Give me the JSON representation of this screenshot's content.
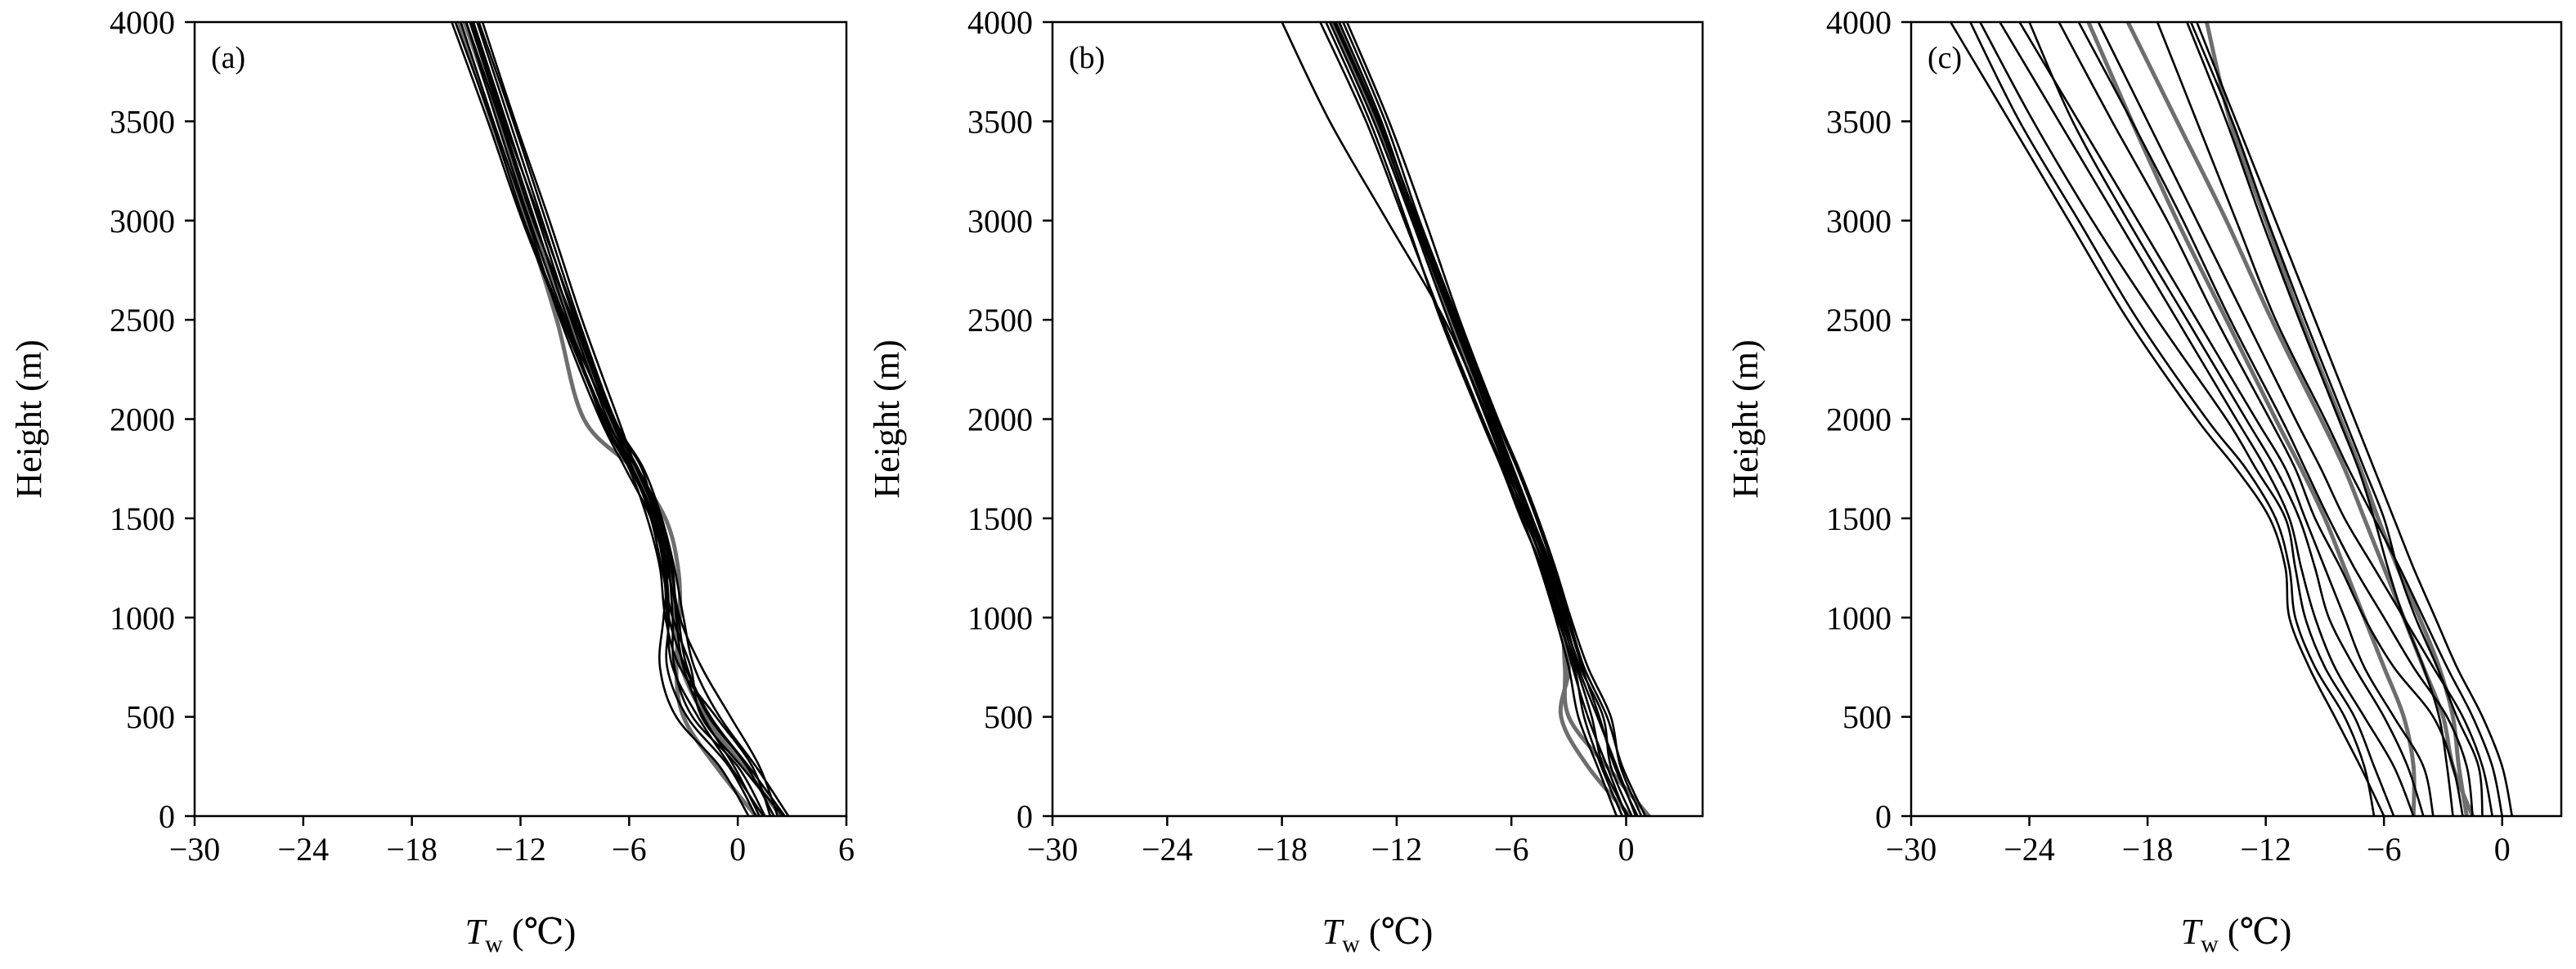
{
  "colors": {
    "profile_dark": "#000000",
    "profile_grey": "#6e6e6e",
    "axis": "#000000",
    "background": "#ffffff"
  },
  "axis_text": {
    "ylabel": "Height (m)",
    "xlabel_symbol": "T",
    "xlabel_subscript": "w",
    "xlabel_unit": " (℃)"
  },
  "chart_data": [
    {
      "type": "line",
      "panel_label": "(a)",
      "xlabel": "Tw (℃)",
      "ylabel": "Height (m)",
      "xlim": [
        -30,
        6
      ],
      "ylim": [
        0,
        4000
      ],
      "xticks": [
        -30,
        -24,
        -18,
        -12,
        -6,
        0,
        6
      ],
      "xtick_labels": [
        "−30",
        "−24",
        "−18",
        "−12",
        "−6",
        "0",
        "6"
      ],
      "yticks": [
        0,
        500,
        1000,
        1500,
        2000,
        2500,
        3000,
        3500,
        4000
      ],
      "ytick_labels": [
        "0",
        "500",
        "1000",
        "1500",
        "2000",
        "2500",
        "3000",
        "3500",
        "4000"
      ],
      "grid": false,
      "heights": [
        0,
        250,
        500,
        750,
        1000,
        1250,
        1500,
        1750,
        2000,
        2500,
        3000,
        3500,
        4000
      ],
      "series": [
        {
          "style": "dark",
          "values": [
            1.5,
            0,
            -2.5,
            -3.5,
            -3.6,
            -3.8,
            -4.2,
            -5.5,
            -7,
            -9.5,
            -11.5,
            -13.3,
            -15
          ]
        },
        {
          "style": "dark",
          "values": [
            2.0,
            0.5,
            -1.6,
            -2.9,
            -3.8,
            -4.0,
            -4.6,
            -5.8,
            -7.2,
            -9.2,
            -11.0,
            -12.8,
            -14.6
          ]
        },
        {
          "style": "dark",
          "values": [
            2.8,
            1.0,
            -1.0,
            -2.4,
            -3.0,
            -3.5,
            -4.2,
            -5.2,
            -6.8,
            -8.8,
            -10.6,
            -12.4,
            -14.3
          ]
        },
        {
          "style": "dark",
          "values": [
            1.0,
            -0.5,
            -2.8,
            -3.9,
            -3.8,
            -4.0,
            -4.8,
            -6.2,
            -7.6,
            -9.8,
            -11.6,
            -13.5,
            -15.3
          ]
        },
        {
          "style": "dark",
          "values": [
            2.5,
            0.2,
            -2.0,
            -2.6,
            -3.6,
            -4.2,
            -4.8,
            -5.8,
            -7.0,
            -9.0,
            -10.8,
            -12.6,
            -14.4
          ]
        },
        {
          "style": "dark",
          "values": [
            0.6,
            -1.0,
            -3.4,
            -4.3,
            -4.1,
            -3.9,
            -4.5,
            -5.6,
            -7.3,
            -9.6,
            -11.8,
            -13.6,
            -15.6
          ]
        },
        {
          "style": "dark",
          "values": [
            2.2,
            1.2,
            -0.4,
            -2.0,
            -3.2,
            -3.7,
            -4.4,
            -5.6,
            -6.6,
            -8.6,
            -10.4,
            -12.3,
            -14.1
          ]
        },
        {
          "style": "dark",
          "values": [
            1.8,
            0.8,
            -1.2,
            -3.2,
            -4.0,
            -4.3,
            -5.0,
            -6.0,
            -7.5,
            -9.4,
            -11.2,
            -13.0,
            -14.8
          ]
        },
        {
          "style": "dark",
          "values": [
            1.2,
            -0.2,
            -1.9,
            -3.0,
            -3.4,
            -3.6,
            -4.3,
            -5.5,
            -7.0,
            -9.1,
            -11.3,
            -13.1,
            -15.0
          ]
        },
        {
          "style": "dark",
          "values": [
            2.6,
            0.6,
            -1.5,
            -2.8,
            -3.3,
            -3.9,
            -4.7,
            -5.9,
            -7.4,
            -9.7,
            -11.9,
            -13.8,
            -15.8
          ]
        },
        {
          "style": "dark",
          "values": [
            1.4,
            -0.4,
            -2.2,
            -3.6,
            -3.9,
            -4.1,
            -4.6,
            -5.3,
            -6.9,
            -8.9,
            -10.9,
            -12.9,
            -14.7
          ]
        },
        {
          "style": "grey",
          "values": [
            1.0,
            -1.2,
            -3.0,
            -3.4,
            -3.2,
            -3.3,
            -4.0,
            -5.8,
            -8.5,
            -10.0,
            -11.7,
            -13.6,
            -15.4
          ]
        },
        {
          "style": "grey",
          "values": [
            2.4,
            0.3,
            -1.8,
            -3.1,
            -3.5,
            -3.7,
            -4.4,
            -5.7,
            -7.1,
            -9.3,
            -11.4,
            -13.2,
            -15.1
          ]
        }
      ]
    },
    {
      "type": "line",
      "panel_label": "(b)",
      "xlabel": "Tw (℃)",
      "ylabel": "Height (m)",
      "xlim": [
        -30,
        4
      ],
      "ylim": [
        0,
        4000
      ],
      "xticks": [
        -30,
        -24,
        -18,
        -12,
        -6,
        0
      ],
      "xtick_labels": [
        "−30",
        "−24",
        "−18",
        "−12",
        "−6",
        "0"
      ],
      "yticks": [
        0,
        500,
        1000,
        1500,
        2000,
        2500,
        3000,
        3500,
        4000
      ],
      "ytick_labels": [
        "0",
        "500",
        "1000",
        "1500",
        "2000",
        "2500",
        "3000",
        "3500",
        "4000"
      ],
      "grid": false,
      "heights": [
        0,
        250,
        500,
        750,
        1000,
        1250,
        1500,
        1750,
        2000,
        2500,
        3000,
        3500,
        4000
      ],
      "series": [
        {
          "style": "dark",
          "values": [
            0.5,
            -0.5,
            -1.5,
            -2.5,
            -3.2,
            -4.0,
            -5.0,
            -6.0,
            -7.0,
            -9.0,
            -11.0,
            -12.8,
            -15.0
          ]
        },
        {
          "style": "dark",
          "values": [
            1.0,
            -0.2,
            -1.0,
            -2.2,
            -3.0,
            -3.8,
            -4.7,
            -5.7,
            -6.8,
            -8.8,
            -10.8,
            -12.6,
            -14.8
          ]
        },
        {
          "style": "dark",
          "values": [
            0.0,
            -1.0,
            -2.0,
            -2.8,
            -3.5,
            -4.3,
            -5.2,
            -6.3,
            -7.3,
            -9.3,
            -11.2,
            -13.2,
            -15.5
          ]
        },
        {
          "style": "dark",
          "values": [
            -0.5,
            -1.5,
            -2.5,
            -3.0,
            -3.7,
            -4.5,
            -5.4,
            -6.4,
            -7.5,
            -9.6,
            -11.6,
            -13.6,
            -16.0
          ]
        },
        {
          "style": "dark",
          "values": [
            0.3,
            -0.8,
            -1.2,
            -2.4,
            -3.3,
            -4.1,
            -5.1,
            -6.1,
            -7.1,
            -9.1,
            -11.1,
            -13.0,
            -15.3
          ]
        },
        {
          "style": "dark",
          "values": [
            0.8,
            -0.3,
            -0.8,
            -2.0,
            -2.9,
            -3.7,
            -4.6,
            -5.6,
            -6.7,
            -8.7,
            -10.5,
            -12.4,
            -14.6
          ]
        },
        {
          "style": "dark",
          "values": [
            0.1,
            -1.2,
            -1.8,
            -2.6,
            -3.4,
            -4.2,
            -5.3,
            -6.2,
            -7.2,
            -9.5,
            -12.5,
            -15.5,
            -18.0
          ]
        },
        {
          "style": "dark",
          "values": [
            0.6,
            -0.6,
            -1.4,
            -2.3,
            -3.1,
            -3.9,
            -4.9,
            -5.9,
            -6.9,
            -8.9,
            -10.9,
            -12.9,
            -15.2
          ]
        },
        {
          "style": "dark",
          "values": [
            -0.2,
            -1.3,
            -2.2,
            -2.7,
            -3.6,
            -4.4,
            -5.5,
            -6.5,
            -7.6,
            -9.7,
            -11.5,
            -13.4,
            -15.7
          ]
        },
        {
          "style": "grey",
          "values": [
            1.2,
            -1.0,
            -3.0,
            -3.2,
            -3.4,
            -4.2,
            -5.0,
            -6.0,
            -7.1,
            -9.1,
            -11.0,
            -12.9,
            -15.1
          ]
        },
        {
          "style": "grey",
          "values": [
            0.2,
            -2.0,
            -3.4,
            -3.0,
            -3.5,
            -4.3,
            -5.2,
            -6.2,
            -7.2,
            -9.2,
            -11.1,
            -13.1,
            -15.4
          ]
        }
      ]
    },
    {
      "type": "line",
      "panel_label": "(c)",
      "xlabel": "Tw (℃)",
      "ylabel": "Height (m)",
      "xlim": [
        -30,
        3
      ],
      "ylim": [
        0,
        4000
      ],
      "xticks": [
        -30,
        -24,
        -18,
        -12,
        -6,
        0
      ],
      "xtick_labels": [
        "−30",
        "−24",
        "−18",
        "−12",
        "−6",
        "0"
      ],
      "yticks": [
        0,
        500,
        1000,
        1500,
        2000,
        2500,
        3000,
        3500,
        4000
      ],
      "ytick_labels": [
        "0",
        "500",
        "1000",
        "1500",
        "2000",
        "2500",
        "3000",
        "3500",
        "4000"
      ],
      "grid": false,
      "heights": [
        0,
        250,
        500,
        750,
        1000,
        1250,
        1500,
        1750,
        2000,
        2500,
        3000,
        3500,
        4000
      ],
      "series": [
        {
          "style": "dark",
          "values": [
            -6.5,
            -7.0,
            -8.0,
            -9.5,
            -10.5,
            -10.8,
            -11.5,
            -13.0,
            -15.0,
            -18.5,
            -21.5,
            -24.5,
            -27.0
          ]
        },
        {
          "style": "dark",
          "values": [
            -5.5,
            -6.5,
            -7.5,
            -9.0,
            -10.0,
            -10.5,
            -11.0,
            -12.5,
            -14.0,
            -17.5,
            -20.8,
            -23.8,
            -26.5
          ]
        },
        {
          "style": "dark",
          "values": [
            -4.5,
            -5.5,
            -7.0,
            -8.5,
            -9.5,
            -10.2,
            -10.8,
            -12.0,
            -13.5,
            -16.5,
            -19.5,
            -22.5,
            -25.5
          ]
        },
        {
          "style": "dark",
          "values": [
            -3.5,
            -4.0,
            -5.5,
            -7.0,
            -8.0,
            -9.0,
            -10.0,
            -11.0,
            -12.5,
            -15.5,
            -18.5,
            -21.5,
            -24.5
          ]
        },
        {
          "style": "dark",
          "values": [
            -2.0,
            -2.5,
            -3.5,
            -5.5,
            -7.0,
            -8.2,
            -9.5,
            -10.5,
            -11.8,
            -14.5,
            -17.0,
            -19.8,
            -22.5
          ]
        },
        {
          "style": "dark",
          "values": [
            -1.5,
            -1.8,
            -2.8,
            -4.5,
            -6.0,
            -7.5,
            -8.8,
            -10.0,
            -11.2,
            -13.8,
            -16.2,
            -18.8,
            -21.5
          ]
        },
        {
          "style": "dark",
          "values": [
            -0.5,
            -1.0,
            -2.0,
            -3.5,
            -5.0,
            -6.5,
            -8.0,
            -9.2,
            -10.5,
            -13.0,
            -15.5,
            -18.0,
            -20.5
          ]
        },
        {
          "style": "dark",
          "values": [
            0.0,
            -0.5,
            -1.5,
            -2.8,
            -4.0,
            -5.2,
            -6.5,
            -7.8,
            -9.0,
            -11.5,
            -13.5,
            -15.5,
            -17.5
          ]
        },
        {
          "style": "dark",
          "values": [
            0.5,
            0.0,
            -1.0,
            -2.3,
            -3.4,
            -4.5,
            -5.5,
            -6.5,
            -7.5,
            -9.5,
            -11.5,
            -13.5,
            -15.5
          ]
        },
        {
          "style": "dark",
          "values": [
            -1.0,
            -1.2,
            -2.3,
            -3.3,
            -4.4,
            -5.3,
            -6.0,
            -7.0,
            -8.0,
            -10.0,
            -11.9,
            -13.7,
            -15.8
          ]
        },
        {
          "style": "dark",
          "values": [
            -2.5,
            -2.8,
            -3.2,
            -4.0,
            -5.0,
            -5.8,
            -6.5,
            -7.3,
            -8.3,
            -10.3,
            -12.2,
            -14.0,
            -16.0
          ]
        },
        {
          "style": "dark",
          "values": [
            -4.0,
            -4.8,
            -6.0,
            -7.5,
            -8.8,
            -9.5,
            -10.3,
            -11.5,
            -13.0,
            -16.0,
            -19.0,
            -21.8,
            -24.0
          ]
        },
        {
          "style": "dark",
          "values": [
            -6.0,
            -7.2,
            -8.5,
            -9.8,
            -10.8,
            -11.0,
            -11.8,
            -13.5,
            -15.5,
            -19.0,
            -22.0,
            -25.0,
            -28.0
          ]
        },
        {
          "style": "grey",
          "values": [
            -4.5,
            -4.5,
            -5.0,
            -6.0,
            -7.0,
            -8.0,
            -9.0,
            -10.2,
            -11.5,
            -14.0,
            -16.5,
            -18.8,
            -21.0
          ]
        },
        {
          "style": "grey",
          "values": [
            -1.5,
            -2.5,
            -3.0,
            -4.0,
            -5.0,
            -6.0,
            -7.0,
            -8.0,
            -9.2,
            -11.7,
            -14.0,
            -16.5,
            -19.0
          ]
        },
        {
          "style": "grey",
          "values": [
            -1.8,
            -2.2,
            -2.5,
            -3.2,
            -4.2,
            -5.3,
            -6.3,
            -7.2,
            -8.2,
            -10.2,
            -12.0,
            -13.8,
            -15.0
          ]
        }
      ]
    }
  ]
}
